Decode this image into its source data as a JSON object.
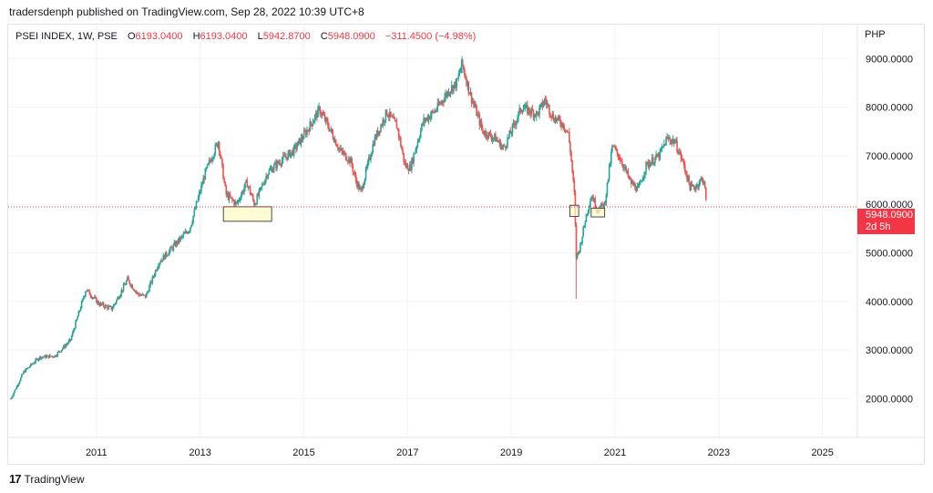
{
  "header": {
    "publish_line": "tradersdenph published on TradingView.com, Sep 28, 2022 10:39 UTC+8"
  },
  "legend": {
    "symbol": "PSEI INDEX, 1W, PSE",
    "open_label": "O",
    "open": "6193.0400",
    "high_label": "H",
    "high": "6193.0400",
    "low_label": "L",
    "low": "5942.8700",
    "close_label": "C",
    "close": "5948.0900",
    "change": "−311.4500 (−4.98%)"
  },
  "price_tag": {
    "price": "5948.0900",
    "countdown": "2d 5h"
  },
  "footer": {
    "logo_mark": "17",
    "brand": "TradingView"
  },
  "colors": {
    "up": "#26a69a",
    "down": "#ef5350",
    "grid": "#f0f3fa",
    "highlight_fill": "#fff9c4",
    "highlight_stroke": "#4a4a4a",
    "price_line": "#f23645"
  },
  "chart_data": {
    "type": "candlestick",
    "currency": "PHP",
    "interval": "1W",
    "y_ticks": [
      "9000.0000",
      "8000.0000",
      "7000.0000",
      "6000.0000",
      "5000.0000",
      "4000.0000",
      "3000.0000",
      "2000.0000"
    ],
    "x_ticks": [
      "2011",
      "2013",
      "2015",
      "2017",
      "2019",
      "2021",
      "2023",
      "2025"
    ],
    "ylim": [
      1200,
      9700
    ],
    "xlim": [
      2009.3,
      2025.55
    ],
    "grid": true,
    "last_price": 5948.09,
    "series_anchor_points": [
      [
        2009.35,
        2000
      ],
      [
        2009.6,
        2550
      ],
      [
        2009.9,
        2850
      ],
      [
        2010.2,
        2880
      ],
      [
        2010.5,
        3200
      ],
      [
        2010.8,
        4250
      ],
      [
        2011.05,
        3950
      ],
      [
        2011.3,
        3850
      ],
      [
        2011.6,
        4450
      ],
      [
        2011.8,
        4150
      ],
      [
        2011.95,
        4100
      ],
      [
        2012.2,
        4800
      ],
      [
        2012.5,
        5150
      ],
      [
        2012.8,
        5500
      ],
      [
        2013.1,
        6650
      ],
      [
        2013.35,
        7300
      ],
      [
        2013.5,
        6200
      ],
      [
        2013.7,
        6000
      ],
      [
        2013.9,
        6450
      ],
      [
        2014.05,
        6000
      ],
      [
        2014.3,
        6650
      ],
      [
        2014.5,
        6850
      ],
      [
        2014.8,
        7100
      ],
      [
        2015.05,
        7500
      ],
      [
        2015.3,
        7950
      ],
      [
        2015.5,
        7550
      ],
      [
        2015.7,
        7100
      ],
      [
        2015.9,
        6900
      ],
      [
        2016.0,
        6500
      ],
      [
        2016.1,
        6250
      ],
      [
        2016.35,
        7300
      ],
      [
        2016.6,
        7900
      ],
      [
        2016.8,
        7600
      ],
      [
        2016.95,
        6800
      ],
      [
        2017.05,
        6750
      ],
      [
        2017.3,
        7700
      ],
      [
        2017.55,
        7950
      ],
      [
        2017.8,
        8350
      ],
      [
        2017.95,
        8500
      ],
      [
        2018.05,
        8900
      ],
      [
        2018.2,
        8300
      ],
      [
        2018.45,
        7500
      ],
      [
        2018.7,
        7350
      ],
      [
        2018.85,
        7150
      ],
      [
        2019.0,
        7500
      ],
      [
        2019.2,
        8000
      ],
      [
        2019.5,
        7850
      ],
      [
        2019.65,
        8150
      ],
      [
        2019.8,
        7800
      ],
      [
        2020.0,
        7650
      ],
      [
        2020.1,
        7450
      ],
      [
        2020.15,
        7000
      ],
      [
        2020.22,
        6150
      ],
      [
        2020.25,
        4900
      ],
      [
        2020.32,
        5100
      ],
      [
        2020.45,
        5800
      ],
      [
        2020.55,
        6200
      ],
      [
        2020.65,
        5900
      ],
      [
        2020.8,
        6000
      ],
      [
        2020.95,
        7200
      ],
      [
        2021.1,
        6950
      ],
      [
        2021.3,
        6450
      ],
      [
        2021.45,
        6300
      ],
      [
        2021.6,
        6800
      ],
      [
        2021.85,
        7000
      ],
      [
        2022.0,
        7350
      ],
      [
        2022.15,
        7300
      ],
      [
        2022.3,
        6900
      ],
      [
        2022.45,
        6350
      ],
      [
        2022.55,
        6350
      ],
      [
        2022.65,
        6500
      ],
      [
        2022.72,
        6500
      ],
      [
        2022.76,
        5948.09
      ]
    ],
    "highlighted_zones": [
      {
        "x": [
          2013.45,
          2014.38
        ],
        "y": [
          5650,
          5950
        ]
      },
      {
        "x": [
          2020.13,
          2020.3
        ],
        "y": [
          5750,
          5980
        ]
      },
      {
        "x": [
          2020.54,
          2020.8
        ],
        "y": [
          5740,
          5920
        ]
      }
    ]
  }
}
